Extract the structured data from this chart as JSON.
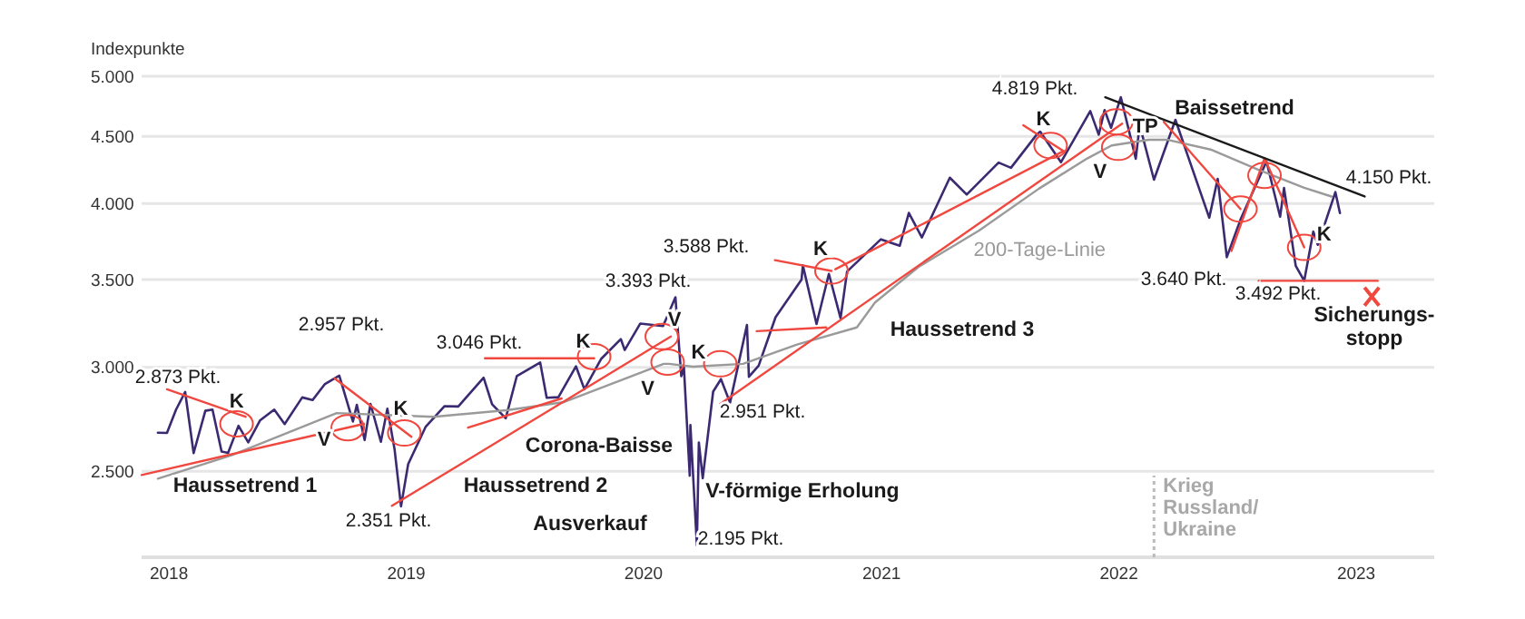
{
  "chart_data": {
    "type": "line",
    "ylabel": "Indexpunkte",
    "log": "y",
    "grid": "y",
    "xlim": [
      "2017-11-20",
      "2023-05-01"
    ],
    "xticks": [
      {
        "value": "2018-01-01",
        "label": "2018"
      },
      {
        "value": "2019-01-01",
        "label": "2019"
      },
      {
        "value": "2020-01-01",
        "label": "2020"
      },
      {
        "value": "2021-01-01",
        "label": "2021"
      },
      {
        "value": "2022-01-01",
        "label": "2022"
      },
      {
        "value": "2023-01-01",
        "label": "2023"
      }
    ],
    "ylim": [
      2150,
      5000
    ],
    "yticks": [
      {
        "value": 2500,
        "label": "2.500"
      },
      {
        "value": 3000,
        "label": "3.000"
      },
      {
        "value": 3500,
        "label": "3.500"
      },
      {
        "value": 4000,
        "label": "4.000"
      },
      {
        "value": 4500,
        "label": "4.500"
      },
      {
        "value": 5000,
        "label": "5.000"
      }
    ],
    "series": [
      {
        "color": "#3b2a72",
        "x": [
          "2017-12-15",
          "2017-12-29",
          "2018-01-12",
          "2018-01-26",
          "2018-02-08",
          "2018-02-26",
          "2018-03-09",
          "2018-03-23",
          "2018-04-02",
          "2018-04-18",
          "2018-05-03",
          "2018-05-21",
          "2018-06-12",
          "2018-06-28",
          "2018-07-25",
          "2018-08-10",
          "2018-08-29",
          "2018-09-20",
          "2018-10-11",
          "2018-10-17",
          "2018-10-29",
          "2018-11-07",
          "2018-11-23",
          "2018-12-03",
          "2018-12-14",
          "2018-12-24",
          "2019-01-04",
          "2019-01-31",
          "2019-03-01",
          "2019-03-22",
          "2019-04-30",
          "2019-05-13",
          "2019-06-03",
          "2019-06-20",
          "2019-07-26",
          "2019-08-05",
          "2019-08-23",
          "2019-09-19",
          "2019-10-02",
          "2019-10-28",
          "2019-11-27",
          "2019-12-03",
          "2019-12-27",
          "2020-01-31",
          "2020-02-19",
          "2020-02-28",
          "2020-03-03",
          "2020-03-12",
          "2020-03-13",
          "2020-03-23",
          "2020-03-26",
          "2020-04-01",
          "2020-04-17",
          "2020-04-29",
          "2020-05-13",
          "2020-06-08",
          "2020-06-11",
          "2020-06-26",
          "2020-07-22",
          "2020-08-31",
          "2020-09-02",
          "2020-09-23",
          "2020-10-12",
          "2020-10-30",
          "2020-11-09",
          "2020-12-31",
          "2021-01-29",
          "2021-02-12",
          "2021-03-04",
          "2021-04-16",
          "2021-05-12",
          "2021-06-30",
          "2021-07-19",
          "2021-08-27",
          "2021-09-02",
          "2021-10-04",
          "2021-11-18",
          "2021-12-01",
          "2021-12-10",
          "2021-12-20",
          "2022-01-04",
          "2022-01-27",
          "2022-02-02",
          "2022-02-24",
          "2022-03-29",
          "2022-04-14",
          "2022-05-20",
          "2022-06-02",
          "2022-06-16",
          "2022-07-08",
          "2022-08-16",
          "2022-09-06",
          "2022-09-12",
          "2022-09-30",
          "2022-10-13",
          "2022-10-27",
          "2022-11-03",
          "2022-11-30",
          "2022-12-07"
        ],
        "values": [
          2675,
          2674,
          2786,
          2873,
          2581,
          2780,
          2786,
          2588,
          2582,
          2708,
          2630,
          2733,
          2786,
          2716,
          2846,
          2833,
          2914,
          2957,
          2728,
          2809,
          2641,
          2814,
          2633,
          2790,
          2600,
          2351,
          2532,
          2704,
          2803,
          2801,
          2946,
          2812,
          2744,
          2954,
          3026,
          2844,
          2847,
          3006,
          2887,
          3046,
          3153,
          3093,
          3240,
          3226,
          3393,
          2954,
          3003,
          2481,
          2711,
          2195,
          2630,
          2470,
          2875,
          2939,
          2820,
          3232,
          2951,
          3009,
          3276,
          3500,
          3588,
          3237,
          3535,
          3270,
          3550,
          3756,
          3714,
          3934,
          3768,
          4185,
          4063,
          4297,
          4258,
          4509,
          4537,
          4300,
          4704,
          4513,
          4712,
          4568,
          4819,
          4326,
          4589,
          4170,
          4632,
          4392,
          3901,
          4176,
          3640,
          3899,
          4305,
          3908,
          4110,
          3585,
          3492,
          3807,
          3720,
          4080,
          3933
        ]
      },
      {
        "type": "line",
        "name": "200-Tage-Linie",
        "color": "#9a9a9a",
        "x": [
          "2017-12-15",
          "2018-04-09",
          "2018-09-16",
          "2019-02-12",
          "2019-06-07",
          "2019-09-01",
          "2020-02-01",
          "2020-02-09",
          "2020-03-17",
          "2020-06-02",
          "2020-08-24",
          "2020-11-24",
          "2020-12-22",
          "2021-02-27",
          "2021-05-31",
          "2021-08-31",
          "2021-11-14",
          "2021-12-21",
          "2022-02-16",
          "2022-03-16",
          "2022-05-22",
          "2022-08-03",
          "2022-10-13",
          "2022-11-24"
        ],
        "values": [
          2468,
          2573,
          2769,
          2751,
          2784,
          2823,
          3019,
          3019,
          3004,
          3019,
          3123,
          3218,
          3362,
          3579,
          3814,
          4105,
          4330,
          4428,
          4473,
          4473,
          4397,
          4245,
          4111,
          4049
        ]
      },
      {
        "type": "line",
        "color": "#f0473f",
        "x": [
          "2017-11-20",
          "2018-10-28"
        ],
        "values": [
          2484,
          2717
        ]
      },
      {
        "type": "line",
        "color": "#f0473f",
        "x": [
          "2017-12-29",
          "2018-04-29"
        ],
        "values": [
          2887,
          2751
        ]
      },
      {
        "type": "line",
        "color": "#f0473f",
        "x": [
          "2018-09-13",
          "2019-01-09"
        ],
        "values": [
          2942,
          2656
        ]
      },
      {
        "type": "line",
        "color": "#f0473f",
        "x": [
          "2018-12-10",
          "2020-02-12"
        ],
        "values": [
          2353,
          3167
        ]
      },
      {
        "type": "line",
        "color": "#f0473f",
        "x": [
          "2019-04-06",
          "2019-08-28"
        ],
        "values": [
          2699,
          2841
        ]
      },
      {
        "type": "line",
        "color": "#f0473f",
        "x": [
          "2019-05-02",
          "2019-10-17"
        ],
        "values": [
          3048,
          3048
        ]
      },
      {
        "type": "line",
        "color": "#f0473f",
        "x": [
          "2020-04-28",
          "2022-01-06"
        ],
        "values": [
          2814,
          4601
        ]
      },
      {
        "type": "line",
        "color": "#f0473f",
        "x": [
          "2020-07-21",
          "2020-10-16"
        ],
        "values": [
          3621,
          3553
        ]
      },
      {
        "type": "line",
        "color": "#f0473f",
        "x": [
          "2020-06-23",
          "2020-10-08"
        ],
        "values": [
          3197,
          3218
        ]
      },
      {
        "type": "line",
        "color": "#f0473f",
        "x": [
          "2020-10-22",
          "2021-10-08"
        ],
        "values": [
          3564,
          4385
        ]
      },
      {
        "type": "line",
        "color": "#f0473f",
        "x": [
          "2021-08-07",
          "2021-10-08"
        ],
        "values": [
          4588,
          4385
        ]
      },
      {
        "type": "line",
        "color": "#f0473f",
        "x": [
          "2022-03-11",
          "2022-07-07"
        ],
        "values": [
          4616,
          3961
        ]
      },
      {
        "type": "line",
        "color": "#f0473f",
        "x": [
          "2022-06-23",
          "2022-08-13"
        ],
        "values": [
          3680,
          4330
        ]
      },
      {
        "type": "line",
        "color": "#f0473f",
        "x": [
          "2022-08-13",
          "2022-10-13"
        ],
        "values": [
          4330,
          3703
        ]
      },
      {
        "type": "line",
        "color": "#f0473f",
        "x": [
          "2022-08-04",
          "2023-02-03"
        ],
        "values": [
          3492,
          3492
        ]
      },
      {
        "type": "line",
        "color": "#1a1a1a",
        "x": [
          "2021-12-11",
          "2023-01-14"
        ],
        "values": [
          4819,
          4049
        ]
      },
      {
        "type": "scatter",
        "marker": "circle",
        "color": "#f0473f",
        "x": [
          "2018-04-15",
          "2018-10-03",
          "2018-12-29",
          "2019-10-17",
          "2020-01-29",
          "2020-02-07",
          "2020-04-28",
          "2020-10-16",
          "2021-09-18",
          "2021-12-28",
          "2021-12-31",
          "2022-07-07",
          "2022-08-13",
          "2022-10-13"
        ],
        "values": [
          2717,
          2699,
          2674,
          3057,
          3167,
          3028,
          3019,
          3553,
          4428,
          4616,
          4414,
          3961,
          4202,
          3703
        ],
        "value_labels": [
          "K",
          "V",
          "K",
          "K",
          "V",
          "V",
          "K",
          "K",
          "K",
          "TP",
          "V",
          null,
          null,
          "K"
        ]
      },
      {
        "type": "scatter",
        "marker": "cross",
        "color": "#f0473f",
        "x": [
          "2023-01-25"
        ],
        "values": [
          3397
        ]
      }
    ],
    "ref_lines": [
      {
        "axis": "x",
        "value": "2022-02-24",
        "label": "Krieg\nRussland/\nUkraine",
        "color": "#bbbbbb",
        "line_style": "dotted"
      }
    ],
    "annotations": [
      "2.873 Pkt.",
      "2.957 Pkt.",
      "3.046 Pkt.",
      "3.393 Pkt.",
      "3.588 Pkt.",
      "4.819 Pkt.",
      "2.951 Pkt.",
      "2.351 Pkt.",
      "2.195 Pkt.",
      "3.640 Pkt.",
      "3.492 Pkt.",
      "4.150 Pkt.",
      "Haussetrend 1",
      "Haussetrend 2",
      "Haussetrend 3",
      "Baissetrend",
      "Ausverkauf",
      "V-förmige Erholung",
      "Corona-Baisse",
      "Sicherungs-\nstopp"
    ]
  }
}
